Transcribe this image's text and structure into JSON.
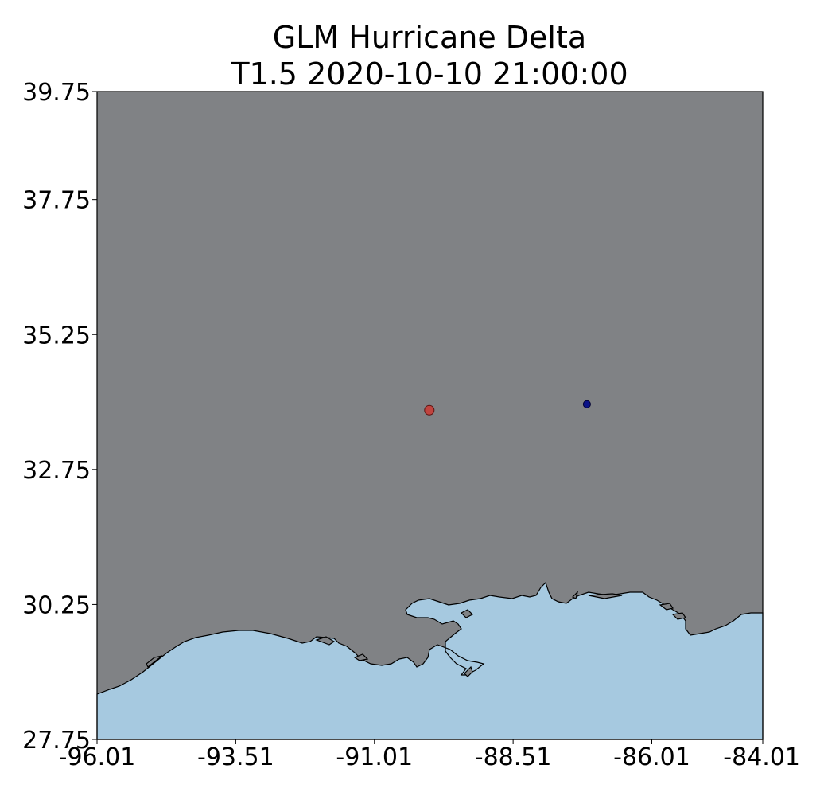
{
  "chart_data": {
    "type": "scatter",
    "title": "GLM Hurricane Delta",
    "subtitle": "T1.5 2020-10-10 21:00:00",
    "xlabel": "",
    "ylabel": "",
    "xlim": [
      -96.01,
      -84.01
    ],
    "ylim": [
      27.75,
      39.75
    ],
    "xticks": [
      "-96.01",
      "-93.51",
      "-91.01",
      "-88.51",
      "-86.01",
      "-84.01"
    ],
    "yticks": [
      "39.75",
      "37.75",
      "35.25",
      "32.75",
      "30.25",
      "27.75"
    ],
    "grid": false,
    "land_color": "#808285",
    "water_color": "#a6c9e0",
    "points": [
      {
        "lon": -90.02,
        "lat": 33.85,
        "color": "#c0443f"
      },
      {
        "lon": -87.18,
        "lat": 33.96,
        "color": "#0a1288"
      }
    ]
  }
}
